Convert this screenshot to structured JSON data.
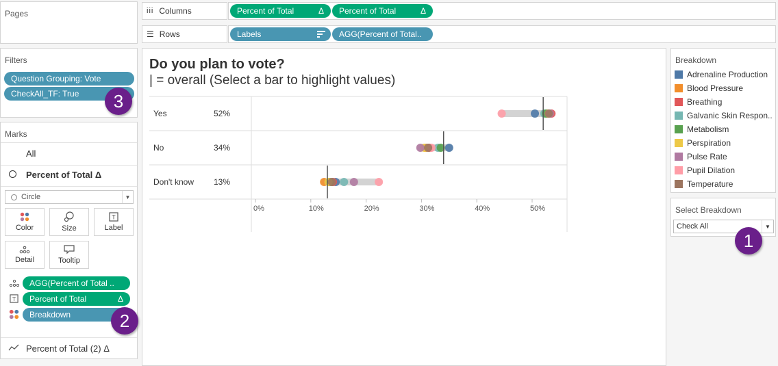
{
  "pages": {
    "title": "Pages"
  },
  "shelves": {
    "columns_label": "Columns",
    "rows_label": "Rows",
    "columns_pills": [
      {
        "text": "Percent of Total",
        "delta": "Δ"
      },
      {
        "text": "Percent of Total",
        "delta": "Δ"
      }
    ],
    "rows_pills": [
      {
        "text": "Labels"
      },
      {
        "text": "AGG(Percent of Total.."
      }
    ]
  },
  "filters": {
    "title": "Filters",
    "items": [
      "Question Grouping: Vote",
      "CheckAll_TF: True"
    ]
  },
  "marks": {
    "title": "Marks",
    "all": "All",
    "measure": "Percent of Total Δ",
    "mark_type": "Circle",
    "buttons": [
      "Color",
      "Size",
      "Label",
      "Detail",
      "Tooltip"
    ],
    "fields": [
      {
        "icon": "detail",
        "text": "AGG(Percent of Total .."
      },
      {
        "icon": "label",
        "text": "Percent of Total",
        "delta": "Δ"
      },
      {
        "icon": "color",
        "text": "Breakdown"
      }
    ],
    "second_measure": "Percent of Total (2) Δ"
  },
  "badges": [
    "1",
    "2",
    "3"
  ],
  "chart": {
    "title": "Do you plan to vote?",
    "subtitle": "| = overall (Select a bar to highlight values)"
  },
  "chart_data": {
    "type": "dot-range",
    "categories": [
      "Yes",
      "No",
      "Don't know"
    ],
    "overall": [
      52,
      34,
      13
    ],
    "overall_labels": [
      "52%",
      "34%",
      "13%"
    ],
    "xticks": [
      "0%",
      "10%",
      "20%",
      "30%",
      "40%",
      "50%"
    ],
    "xlim": [
      0,
      57
    ],
    "series": [
      {
        "name": "Adrenaline Production",
        "color": "#4e79a7",
        "values": [
          50.5,
          35,
          14.5
        ]
      },
      {
        "name": "Blood Pressure",
        "color": "#f28e2b",
        "values": [
          52.8,
          30.8,
          12.4
        ]
      },
      {
        "name": "Breathing",
        "color": "#e15759",
        "values": [
          53.5,
          31.5,
          14
        ]
      },
      {
        "name": "Galvanic Skin Respon..",
        "color": "#76b7b2",
        "values": [
          52.2,
          33,
          16
        ]
      },
      {
        "name": "Metabolism",
        "color": "#59a14f",
        "values": [
          52.5,
          33.5,
          13.4
        ]
      },
      {
        "name": "Perspiration",
        "color": "#edc948",
        "values": [
          53,
          30.5,
          13.2
        ]
      },
      {
        "name": "Pulse Rate",
        "color": "#b07aa1",
        "values": [
          53.2,
          29.8,
          17.8
        ]
      },
      {
        "name": "Pupil Dilation",
        "color": "#ff9da7",
        "values": [
          44.5,
          31.8,
          22.3
        ]
      },
      {
        "name": "Temperature",
        "color": "#9c755f",
        "values": [
          53,
          31.2,
          13.8
        ]
      }
    ]
  },
  "legend": {
    "title": "Breakdown"
  },
  "select_breakdown": {
    "title": "Select Breakdown",
    "value": "Check All"
  }
}
